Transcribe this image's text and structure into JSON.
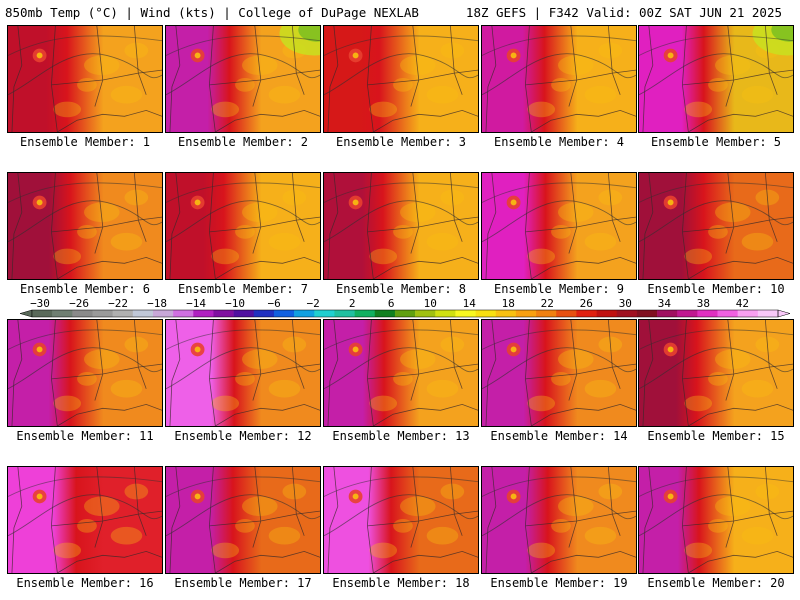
{
  "header": {
    "left": "850mb Temp (°C) | Wind (kts) | College of DuPage NEXLAB",
    "right": "18Z GEFS | F342 Valid: 00Z SAT JUN 21 2025"
  },
  "map": {
    "panels": [
      {
        "label": "Ensemble Member: 1",
        "west_color": "#c0102a",
        "east_color": "#f4a21e",
        "hot": 0.55,
        "cool_ne": false
      },
      {
        "label": "Ensemble Member: 2",
        "west_color": "#c41fa8",
        "east_color": "#f4a21e",
        "hot": 0.75,
        "cool_ne": true
      },
      {
        "label": "Ensemble Member: 3",
        "west_color": "#d61818",
        "east_color": "#f6b01a",
        "hot": 0.4,
        "cool_ne": false
      },
      {
        "label": "Ensemble Member: 4",
        "west_color": "#d01aa0",
        "east_color": "#f6b01a",
        "hot": 0.7,
        "cool_ne": false
      },
      {
        "label": "Ensemble Member: 5",
        "west_color": "#e020c0",
        "east_color": "#e8b81a",
        "hot": 0.8,
        "cool_ne": true
      },
      {
        "label": "Ensemble Member: 6",
        "west_color": "#a0103a",
        "east_color": "#f08a1e",
        "hot": 0.7,
        "cool_ne": false
      },
      {
        "label": "Ensemble Member: 7",
        "west_color": "#c0102a",
        "east_color": "#f6b01a",
        "hot": 0.5,
        "cool_ne": false
      },
      {
        "label": "Ensemble Member: 8",
        "west_color": "#b0103a",
        "east_color": "#f6b01a",
        "hot": 0.55,
        "cool_ne": false
      },
      {
        "label": "Ensemble Member: 9",
        "west_color": "#e020c0",
        "east_color": "#f4a21e",
        "hot": 0.75,
        "cool_ne": false
      },
      {
        "label": "Ensemble Member: 10",
        "west_color": "#a0103a",
        "east_color": "#e86a1a",
        "hot": 0.8,
        "cool_ne": false
      },
      {
        "label": "Ensemble Member: 11",
        "west_color": "#c41fa8",
        "east_color": "#f08a1e",
        "hot": 0.7,
        "cool_ne": false
      },
      {
        "label": "Ensemble Member: 12",
        "west_color": "#ee60e8",
        "east_color": "#f08a1e",
        "hot": 0.95,
        "cool_ne": false
      },
      {
        "label": "Ensemble Member: 13",
        "west_color": "#c41fa8",
        "east_color": "#f4a21e",
        "hot": 0.6,
        "cool_ne": false
      },
      {
        "label": "Ensemble Member: 14",
        "west_color": "#c41fa8",
        "east_color": "#f08a1e",
        "hot": 0.75,
        "cool_ne": false
      },
      {
        "label": "Ensemble Member: 15",
        "west_color": "#a0103a",
        "east_color": "#f4a21e",
        "hot": 0.5,
        "cool_ne": false
      },
      {
        "label": "Ensemble Member: 16",
        "west_color": "#ee40d8",
        "east_color": "#e0202a",
        "hot": 0.95,
        "cool_ne": false
      },
      {
        "label": "Ensemble Member: 17",
        "west_color": "#c41fa8",
        "east_color": "#e86a1a",
        "hot": 0.9,
        "cool_ne": false
      },
      {
        "label": "Ensemble Member: 18",
        "west_color": "#ee50e0",
        "east_color": "#e86a1a",
        "hot": 0.9,
        "cool_ne": false
      },
      {
        "label": "Ensemble Member: 19",
        "west_color": "#c41fa8",
        "east_color": "#f08a1e",
        "hot": 0.85,
        "cool_ne": false
      },
      {
        "label": "Ensemble Member: 20",
        "west_color": "#c41fa8",
        "east_color": "#f6b01a",
        "hot": 0.6,
        "cool_ne": false
      }
    ]
  },
  "colorbar": {
    "ticks": [
      "−30",
      "−26",
      "−22",
      "−18",
      "−14",
      "−10",
      "−6",
      "−2",
      "2",
      "6",
      "10",
      "14",
      "18",
      "22",
      "26",
      "30",
      "34",
      "38",
      "42"
    ],
    "colors": [
      "#5a6a5a",
      "#6f7f72",
      "#8a8a8a",
      "#9a9a9a",
      "#b0b0b0",
      "#c0c8d8",
      "#c8a8d8",
      "#d070e0",
      "#b020c0",
      "#8010a0",
      "#5010a0",
      "#2030c0",
      "#1060e0",
      "#10a0e0",
      "#20d0d0",
      "#20c0a0",
      "#10b060",
      "#108020",
      "#60a010",
      "#a0c010",
      "#d0e010",
      "#f8f820",
      "#f8e010",
      "#f8c010",
      "#f8a010",
      "#f08010",
      "#e85010",
      "#e02010",
      "#c01010",
      "#a01020",
      "#801020",
      "#a01060",
      "#c01890",
      "#e030c0",
      "#f060e0",
      "#f8a0f0",
      "#f8c8f8"
    ]
  }
}
